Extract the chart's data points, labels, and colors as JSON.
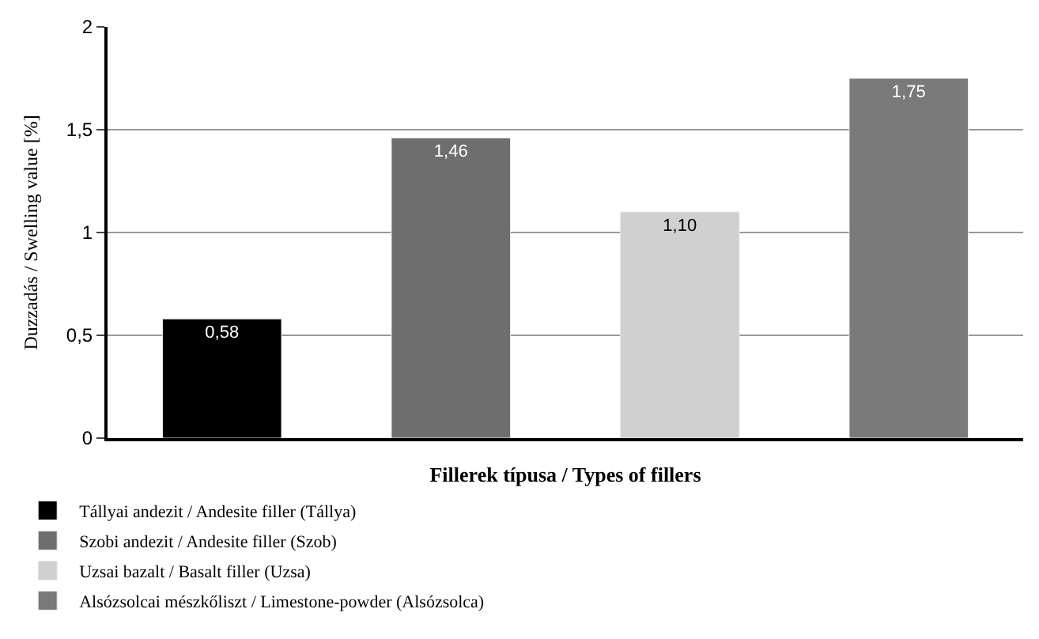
{
  "chart_data": {
    "type": "bar",
    "xlabel": "Fillerek típusa / Types of fillers",
    "ylabel": "Duzzadás / Swelling value [%]",
    "categories": [
      null,
      null,
      null,
      null
    ],
    "series": [
      {
        "name": "Tállyai andezit / Andesite filler (Tállya)",
        "color": "#000000",
        "values": [
          0.58,
          null,
          null,
          null
        ],
        "value_labels": [
          "0,58",
          null,
          null,
          null
        ]
      },
      {
        "name": "Szobi andezit / Andesite filler (Szob)",
        "color": "#6e6e6e",
        "values": [
          null,
          1.46,
          null,
          null
        ],
        "value_labels": [
          null,
          "1,46",
          null,
          null
        ]
      },
      {
        "name": "Uzsai bazalt / Basalt filler (Uzsa)",
        "color": "#d0d0d0",
        "values": [
          null,
          null,
          1.1,
          null
        ],
        "value_labels": [
          null,
          null,
          "1,10",
          null
        ]
      },
      {
        "name": "Alsózsolcai mészkőliszt / Limestone-powder (Alsózsolca)",
        "color": "#7a7a7a",
        "values": [
          null,
          null,
          null,
          1.75
        ],
        "value_labels": [
          null,
          null,
          null,
          "1,75"
        ]
      }
    ],
    "ylim": [
      0,
      2
    ],
    "yticks": [
      0,
      {
        "value": 0.5,
        "label": "0,5"
      },
      1,
      {
        "value": 1.5,
        "label": "1,5"
      },
      2
    ],
    "grid": "y",
    "legend": "bottom"
  }
}
